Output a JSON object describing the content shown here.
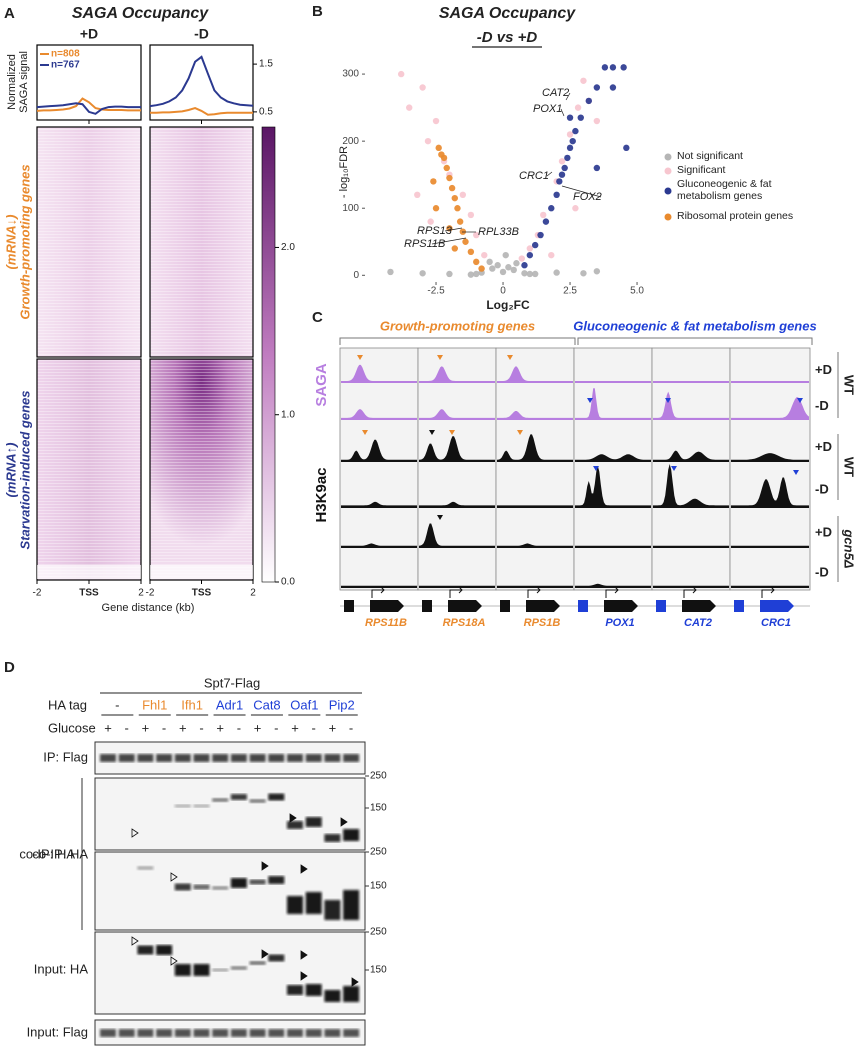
{
  "figure": {
    "panel_a": {
      "label": "A",
      "title": "SAGA Occupancy",
      "gene_groups": [
        {
          "direction": "(mRNA↓)",
          "name": "Growth-promoting genes",
          "color": "#e98a2e"
        },
        {
          "direction": "(mRNA↑)",
          "name": "Starvation-induced genes",
          "color": "#2b3990"
        }
      ],
      "heatmap_xticks": [
        -2,
        {
          "value": 0,
          "label": "TSS"
        },
        2
      ],
      "xlabel": "Gene distance (kb)",
      "colorbar": {
        "lim": [
          0,
          2.72
        ],
        "ticks": [
          {
            "value": 0,
            "label": "0.0"
          },
          {
            "value": 1,
            "label": "1.0"
          },
          {
            "value": 2,
            "label": "2.0"
          }
        ]
      }
    },
    "panel_b": {
      "label": "B"
    },
    "panel_c": {
      "label": "C",
      "groups": [
        {
          "name": "Growth-promoting genes",
          "color": "#e98a2e"
        },
        {
          "name": "Gluconeogenic & fat metabolism genes",
          "color": "#1f3fd6"
        }
      ],
      "tracks": [
        {
          "name": "SAGA",
          "color": "#b77ee0"
        },
        {
          "name": "H3K9ac",
          "color": "#111111"
        }
      ],
      "conditions": [
        "+D",
        "-D"
      ],
      "strains": [
        "WT",
        "WT",
        "gcn5Δ"
      ],
      "genes": [
        "RPS11B",
        "RPS18A",
        "RPS1B",
        "POX1",
        "CAT2",
        "CRC1"
      ]
    },
    "panel_d": {
      "label": "D",
      "bait": "Spt7-Flag",
      "ha_tag_label": "HA tag",
      "ha_tags": [
        {
          "name": "-",
          "color": "#222222"
        },
        {
          "name": "Fhl1",
          "color": "#e98a2e"
        },
        {
          "name": "Ifh1",
          "color": "#e98a2e"
        },
        {
          "name": "Adr1",
          "color": "#1f3fd6"
        },
        {
          "name": "Cat8",
          "color": "#1f3fd6"
        },
        {
          "name": "Oaf1",
          "color": "#1f3fd6"
        },
        {
          "name": "Pip2",
          "color": "#1f3fd6"
        }
      ],
      "glucose_label": "Glucose",
      "glucose": [
        "+",
        "-"
      ],
      "blots": [
        "IP: Flag",
        "co-IP: HA",
        "Input: HA",
        "Input: Flag"
      ],
      "markers": [
        250,
        150
      ]
    }
  },
  "chart_data": [
    {
      "type": "line",
      "title": "+D",
      "ylabel": [
        "Normalized",
        "SAGA signal"
      ],
      "x": [
        -2,
        -1.75,
        -1.5,
        -1.25,
        -1,
        -0.75,
        -0.5,
        -0.25,
        0,
        0.25,
        0.5,
        0.75,
        1,
        1.25,
        1.5,
        1.75,
        2
      ],
      "xlim": [
        -2,
        2
      ],
      "ylim": [
        0.33,
        1.9
      ],
      "series": [
        {
          "name": "n=808",
          "color": "#e98a2e",
          "values": [
            0.52,
            0.53,
            0.53,
            0.54,
            0.55,
            0.57,
            0.62,
            0.78,
            0.7,
            0.58,
            0.55,
            0.54,
            0.54,
            0.54,
            0.53,
            0.53,
            0.53
          ]
        },
        {
          "name": "n=767",
          "color": "#2b3990",
          "values": [
            0.6,
            0.61,
            0.62,
            0.63,
            0.64,
            0.66,
            0.68,
            0.66,
            0.5,
            0.46,
            0.56,
            0.6,
            0.61,
            0.61,
            0.6,
            0.6,
            0.6
          ]
        }
      ]
    },
    {
      "type": "line",
      "title": "-D",
      "x": [
        -2,
        -1.75,
        -1.5,
        -1.25,
        -1,
        -0.75,
        -0.5,
        -0.25,
        0,
        0.25,
        0.5,
        0.75,
        1,
        1.25,
        1.5,
        1.75,
        2
      ],
      "xlim": [
        -2,
        2
      ],
      "ylim": [
        0.33,
        1.9
      ],
      "yticks": [
        0.5,
        1.5
      ],
      "series": [
        {
          "color": "#e98a2e",
          "values": [
            0.48,
            0.48,
            0.49,
            0.49,
            0.5,
            0.51,
            0.54,
            0.58,
            0.52,
            0.44,
            0.45,
            0.47,
            0.48,
            0.48,
            0.48,
            0.48,
            0.48
          ]
        },
        {
          "color": "#2b3990",
          "values": [
            0.62,
            0.64,
            0.67,
            0.72,
            0.8,
            0.95,
            1.2,
            1.55,
            1.65,
            1.3,
            0.95,
            0.8,
            0.72,
            0.68,
            0.65,
            0.64,
            0.63
          ]
        }
      ]
    },
    {
      "type": "scatter",
      "title": "SAGA Occupancy",
      "subtitle": "-D vs +D",
      "xlabel": "Log₂FC",
      "ylabel": "- log₁₀FDR",
      "xlim": [
        -5.15,
        5.67
      ],
      "ylim": [
        -10,
        321
      ],
      "xticks": [
        -2.5,
        0,
        2.5,
        {
          "value": 5,
          "label": "5.0"
        }
      ],
      "yticks": [
        0,
        100,
        200,
        300
      ],
      "legend": "right",
      "annotations": [
        "CAT2",
        "POX1",
        "CRC1",
        "FOX2",
        "RPS13",
        "RPL33B",
        "RPS11B"
      ],
      "series": [
        {
          "name": "Not significant",
          "color": "#b5b5b5",
          "x": [
            -4.2,
            -3.0,
            -2.0,
            -1.2,
            -0.8,
            -0.4,
            -0.2,
            0,
            0.2,
            0.4,
            0.8,
            1.2,
            2.0,
            3.0,
            3.5,
            -0.5,
            0.5,
            -1.0,
            1.0,
            0.1
          ],
          "values": [
            5,
            3,
            2,
            1,
            4,
            10,
            15,
            5,
            12,
            8,
            3,
            2,
            4,
            3,
            6,
            20,
            18,
            2,
            2,
            30
          ]
        },
        {
          "name": "Significant",
          "color": "#f7c6cf",
          "x": [
            -3.8,
            -3.5,
            -3.0,
            -2.8,
            -2.5,
            -2.2,
            -2.0,
            -1.5,
            -1.2,
            -1.0,
            1.0,
            1.3,
            1.5,
            2.0,
            2.2,
            2.5,
            2.8,
            3.0,
            3.2,
            3.5,
            -3.2,
            -2.7,
            1.8,
            2.7,
            -0.7,
            0.7
          ],
          "values": [
            300,
            250,
            280,
            200,
            230,
            170,
            150,
            120,
            90,
            60,
            40,
            60,
            90,
            140,
            170,
            210,
            250,
            290,
            260,
            230,
            120,
            80,
            30,
            100,
            30,
            25
          ]
        },
        {
          "name": "Gluconeogenic & fat metabolism genes",
          "color": "#2b3990",
          "x": [
            0.8,
            1.0,
            1.2,
            1.4,
            1.6,
            1.8,
            2.0,
            2.1,
            2.2,
            2.3,
            2.4,
            2.5,
            2.6,
            2.7,
            2.9,
            3.2,
            3.5,
            3.8,
            4.1,
            4.5,
            4.6,
            3.5,
            2.5,
            4.1
          ],
          "values": [
            15,
            30,
            45,
            60,
            80,
            100,
            120,
            140,
            150,
            160,
            175,
            190,
            200,
            215,
            235,
            260,
            280,
            310,
            310,
            310,
            190,
            160,
            235,
            280
          ]
        },
        {
          "name": "Ribosomal protein genes",
          "color": "#e98a2e",
          "x": [
            -0.8,
            -1.0,
            -1.2,
            -1.4,
            -1.5,
            -1.6,
            -1.7,
            -1.8,
            -1.9,
            -2.0,
            -2.1,
            -2.2,
            -2.4,
            -2.6,
            -2.5,
            -2.3,
            -2.0,
            -1.8
          ],
          "values": [
            10,
            20,
            35,
            50,
            65,
            80,
            100,
            115,
            130,
            145,
            160,
            175,
            190,
            140,
            100,
            180,
            70,
            40
          ]
        }
      ]
    }
  ]
}
